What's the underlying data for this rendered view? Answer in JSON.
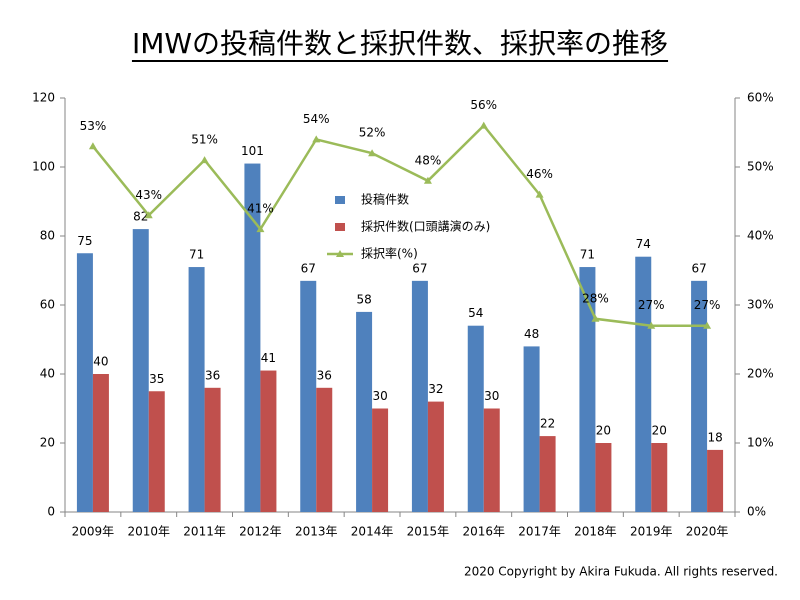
{
  "chart_data": {
    "type": "bar",
    "title": "IMWの投稿件数と採択件数、採択率の推移",
    "footer": "2020 Copyright by Akira Fukuda. All rights reserved.",
    "categories": [
      "2009年",
      "2010年",
      "2011年",
      "2012年",
      "2013年",
      "2014年",
      "2015年",
      "2016年",
      "2017年",
      "2018年",
      "2019年",
      "2020年"
    ],
    "series": [
      {
        "name": "投稿件数",
        "type": "bar",
        "color": "#4f81bd",
        "values": [
          75,
          82,
          71,
          101,
          67,
          58,
          67,
          54,
          48,
          71,
          74,
          67
        ]
      },
      {
        "name": "採択件数(口頭講演のみ)",
        "type": "bar",
        "color": "#c0504d",
        "values": [
          40,
          35,
          36,
          41,
          36,
          30,
          32,
          30,
          22,
          20,
          20,
          18
        ]
      },
      {
        "name": "採択率(%)",
        "type": "line",
        "axis": "y2",
        "color": "#9bbb59",
        "values": [
          53,
          43,
          51,
          41,
          54,
          52,
          48,
          56,
          46,
          28,
          27,
          27
        ],
        "value_labels": [
          "53%",
          "43%",
          "51%",
          "41%",
          "54%",
          "52%",
          "48%",
          "56%",
          "46%",
          "28%",
          "27%",
          "27%"
        ]
      }
    ],
    "ylim": [
      0,
      120
    ],
    "yticks": [
      0,
      20,
      40,
      60,
      80,
      100,
      120
    ],
    "y2lim": [
      0,
      60
    ],
    "y2ticks": [
      {
        "value": 0,
        "label": "0%"
      },
      {
        "value": 10,
        "label": "10%"
      },
      {
        "value": 20,
        "label": "20%"
      },
      {
        "value": 30,
        "label": "30%"
      },
      {
        "value": 40,
        "label": "40%"
      },
      {
        "value": 50,
        "label": "50%"
      },
      {
        "value": 60,
        "label": "60%"
      }
    ],
    "grid": false
  }
}
